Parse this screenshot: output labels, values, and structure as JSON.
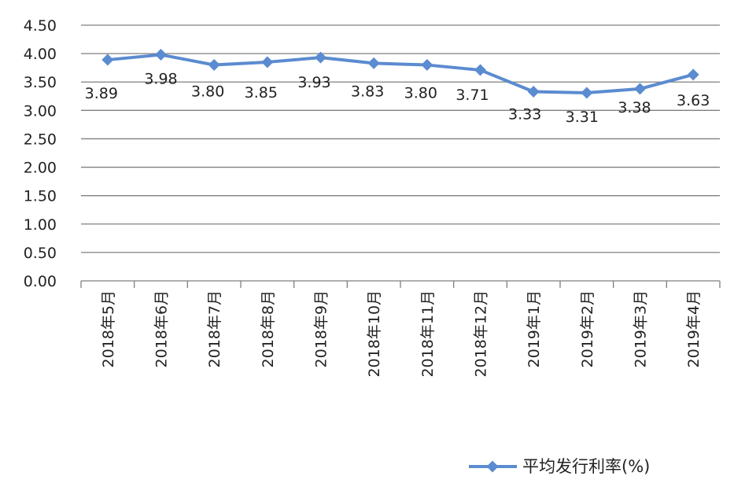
{
  "chart_data": {
    "type": "line",
    "categories": [
      "2018年5月",
      "2018年6月",
      "2018年7月",
      "2018年8月",
      "2018年9月",
      "2018年10月",
      "2018年11月",
      "2018年12月",
      "2019年1月",
      "2019年2月",
      "2019年3月",
      "2019年4月"
    ],
    "series": [
      {
        "name": "平均发行利率(%)",
        "values": [
          3.89,
          3.98,
          3.8,
          3.85,
          3.93,
          3.83,
          3.8,
          3.71,
          3.33,
          3.31,
          3.38,
          3.63
        ]
      }
    ],
    "data_labels": [
      "3.89",
      "3.98",
      "3.80",
      "3.85",
      "3.93",
      "3.83",
      "3.80",
      "3.71",
      "3.33",
      "3.31",
      "3.38",
      "3.63"
    ],
    "y_ticks": [
      "0.00",
      "0.50",
      "1.00",
      "1.50",
      "2.00",
      "2.50",
      "3.00",
      "3.50",
      "4.00",
      "4.50"
    ],
    "ylim": [
      0,
      4.5
    ],
    "grid": true,
    "legend_position": "bottom-right",
    "colors": {
      "series": "#5B8BD0",
      "grid": "#7f7f7f",
      "axis": "#7f7f7f"
    }
  }
}
